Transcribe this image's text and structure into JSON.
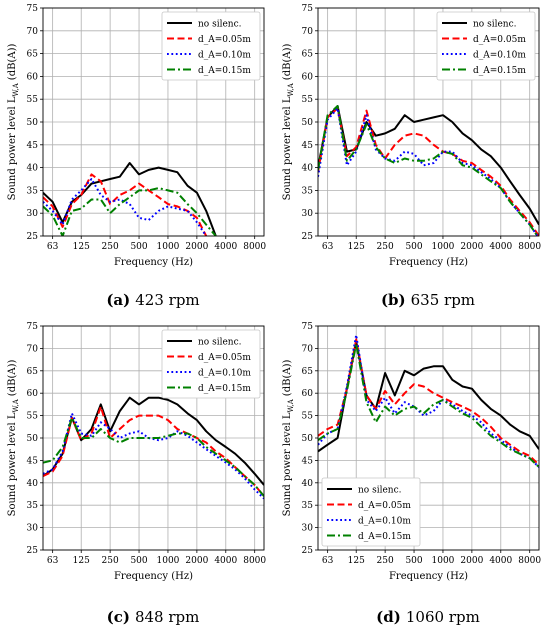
{
  "chart_data": [
    {
      "type": "line",
      "caption_label": "(a)",
      "caption_text": "423 rpm",
      "xlabel": "Frequency (Hz)",
      "ylabel": "Sound power level L",
      "ylabel_sub": "W,A",
      "ylabel_unit": "(dB(A))",
      "xscale": "log",
      "xlim": [
        50,
        10000
      ],
      "ylim": [
        25,
        75
      ],
      "xticks": [
        63,
        125,
        250,
        500,
        1000,
        2000,
        4000,
        8000
      ],
      "xtick_labels": [
        "63",
        "125",
        "250",
        "500",
        "1000",
        "2000",
        "4000",
        "8000"
      ],
      "yticks": [
        25,
        30,
        35,
        40,
        45,
        50,
        55,
        60,
        65,
        70,
        75
      ],
      "ytick_labels": [
        "25",
        "30",
        "35",
        "40",
        "45",
        "50",
        "55",
        "60",
        "65",
        "70",
        "75"
      ],
      "grid": true,
      "legend_position": "top-right",
      "series": [
        {
          "name": "no silenc.",
          "color": "#000000",
          "style": "solid",
          "x": [
            50,
            63,
            80,
            100,
            125,
            160,
            200,
            250,
            315,
            400,
            500,
            630,
            800,
            1000,
            1250,
            1600,
            2000,
            2500,
            3150
          ],
          "y": [
            34.5,
            32.5,
            28.0,
            32.5,
            34.0,
            36.5,
            37.0,
            37.5,
            38.0,
            41.0,
            38.5,
            39.5,
            40.0,
            39.5,
            39.0,
            36.0,
            34.5,
            30.5,
            25.0
          ]
        },
        {
          "name": "d_A=0.05m",
          "color": "#ff0000",
          "style": "dashed",
          "x": [
            50,
            63,
            80,
            100,
            125,
            160,
            200,
            250,
            315,
            400,
            500,
            630,
            800,
            1000,
            1250,
            1600,
            2000,
            2500
          ],
          "y": [
            33.5,
            31.5,
            27.0,
            32.0,
            34.0,
            38.5,
            37.0,
            32.0,
            34.0,
            35.0,
            36.5,
            35.0,
            33.5,
            32.0,
            31.5,
            30.5,
            29.0,
            25.0
          ]
        },
        {
          "name": "d_A=0.10m",
          "color": "#0000ff",
          "style": "dotted",
          "x": [
            50,
            63,
            80,
            100,
            125,
            160,
            200,
            250,
            315,
            400,
            500,
            630,
            800,
            1000,
            1250,
            1600,
            2000,
            2500
          ],
          "y": [
            32.5,
            30.5,
            27.5,
            33.0,
            35.0,
            37.5,
            34.0,
            32.5,
            33.0,
            32.0,
            29.0,
            28.5,
            30.5,
            31.5,
            31.0,
            30.5,
            28.0,
            25.0
          ]
        },
        {
          "name": "d_A=0.15m",
          "color": "#008000",
          "style": "dashdot",
          "x": [
            50,
            63,
            80,
            100,
            125,
            160,
            200,
            250,
            315,
            400,
            500,
            630,
            800,
            1000,
            1250,
            1600,
            2000,
            2500,
            3150
          ],
          "y": [
            31.5,
            29.5,
            25.0,
            30.5,
            31.0,
            33.0,
            33.0,
            30.0,
            32.0,
            33.5,
            35.0,
            35.0,
            35.5,
            35.0,
            34.5,
            32.0,
            30.0,
            27.5,
            25.0
          ]
        }
      ]
    },
    {
      "type": "line",
      "caption_label": "(b)",
      "caption_text": "635 rpm",
      "xlabel": "Frequency (Hz)",
      "ylabel": "Sound power level L",
      "ylabel_sub": "W,A",
      "ylabel_unit": "(dB(A))",
      "xscale": "log",
      "xlim": [
        50,
        10000
      ],
      "ylim": [
        25,
        75
      ],
      "xticks": [
        63,
        125,
        250,
        500,
        1000,
        2000,
        4000,
        8000
      ],
      "xtick_labels": [
        "63",
        "125",
        "250",
        "500",
        "1000",
        "2000",
        "4000",
        "8000"
      ],
      "yticks": [
        25,
        30,
        35,
        40,
        45,
        50,
        55,
        60,
        65,
        70,
        75
      ],
      "ytick_labels": [
        "25",
        "30",
        "35",
        "40",
        "45",
        "50",
        "55",
        "60",
        "65",
        "70",
        "75"
      ],
      "grid": true,
      "legend_position": "top-right",
      "series": [
        {
          "name": "no silenc.",
          "color": "#000000",
          "style": "solid",
          "x": [
            50,
            63,
            80,
            100,
            125,
            160,
            200,
            250,
            315,
            400,
            500,
            630,
            800,
            1000,
            1250,
            1600,
            2000,
            2500,
            3150,
            4000,
            5000,
            6300,
            8000,
            10000
          ],
          "y": [
            40.0,
            51.0,
            53.5,
            43.5,
            44.0,
            50.0,
            47.0,
            47.5,
            48.5,
            51.5,
            50.0,
            50.5,
            51.0,
            51.5,
            50.0,
            47.5,
            46.0,
            44.0,
            42.5,
            40.0,
            37.0,
            34.0,
            31.0,
            27.5
          ]
        },
        {
          "name": "d_A=0.05m",
          "color": "#ff0000",
          "style": "dashed",
          "x": [
            50,
            63,
            80,
            100,
            125,
            160,
            200,
            250,
            315,
            400,
            500,
            630,
            800,
            1000,
            1250,
            1600,
            2000,
            2500,
            3150,
            4000,
            5000,
            6300,
            8000,
            10000
          ],
          "y": [
            39.0,
            51.0,
            53.0,
            42.5,
            44.5,
            52.5,
            45.0,
            42.0,
            45.0,
            47.0,
            47.5,
            47.0,
            45.0,
            43.5,
            43.0,
            41.5,
            41.0,
            39.5,
            38.0,
            36.0,
            33.0,
            30.5,
            28.0,
            25.0
          ]
        },
        {
          "name": "d_A=0.10m",
          "color": "#0000ff",
          "style": "dotted",
          "x": [
            50,
            63,
            80,
            100,
            125,
            160,
            200,
            250,
            315,
            400,
            500,
            630,
            800,
            1000,
            1250,
            1600,
            2000,
            2500,
            3150,
            4000,
            5000,
            6300,
            8000,
            10000
          ],
          "y": [
            38.0,
            50.5,
            53.0,
            40.5,
            43.5,
            51.5,
            44.0,
            42.0,
            41.5,
            43.5,
            43.0,
            40.5,
            41.0,
            43.5,
            43.5,
            41.0,
            40.5,
            39.0,
            37.5,
            35.5,
            32.5,
            30.0,
            27.5,
            24.5
          ]
        },
        {
          "name": "d_A=0.15m",
          "color": "#008000",
          "style": "dashdot",
          "x": [
            50,
            63,
            80,
            100,
            125,
            160,
            200,
            250,
            315,
            400,
            500,
            630,
            800,
            1000,
            1250,
            1600,
            2000,
            2500,
            3150,
            4000,
            5000,
            6300,
            8000,
            10000
          ],
          "y": [
            39.5,
            51.5,
            53.5,
            41.5,
            44.0,
            49.5,
            44.5,
            42.0,
            41.0,
            42.0,
            41.5,
            41.5,
            42.0,
            43.5,
            43.0,
            40.5,
            40.0,
            38.5,
            37.0,
            35.5,
            32.5,
            30.0,
            27.5,
            24.5
          ]
        }
      ]
    },
    {
      "type": "line",
      "caption_label": "(c)",
      "caption_text": "848 rpm",
      "xlabel": "Frequency (Hz)",
      "ylabel": "Sound power level L",
      "ylabel_sub": "W,A",
      "ylabel_unit": "(dB(A))",
      "xscale": "log",
      "xlim": [
        50,
        10000
      ],
      "ylim": [
        25,
        75
      ],
      "xticks": [
        63,
        125,
        250,
        500,
        1000,
        2000,
        4000,
        8000
      ],
      "xtick_labels": [
        "63",
        "125",
        "250",
        "500",
        "1000",
        "2000",
        "4000",
        "8000"
      ],
      "yticks": [
        25,
        30,
        35,
        40,
        45,
        50,
        55,
        60,
        65,
        70,
        75
      ],
      "ytick_labels": [
        "25",
        "30",
        "35",
        "40",
        "45",
        "50",
        "55",
        "60",
        "65",
        "70",
        "75"
      ],
      "grid": true,
      "legend_position": "top-right",
      "series": [
        {
          "name": "no silenc.",
          "color": "#000000",
          "style": "solid",
          "x": [
            50,
            63,
            80,
            100,
            125,
            160,
            200,
            250,
            315,
            400,
            500,
            630,
            800,
            1000,
            1250,
            1600,
            2000,
            2500,
            3150,
            4000,
            5000,
            6300,
            8000,
            10000
          ],
          "y": [
            41.5,
            43.0,
            46.5,
            54.5,
            49.5,
            52.0,
            57.5,
            51.5,
            56.0,
            59.0,
            57.5,
            59.0,
            59.0,
            58.5,
            57.5,
            55.5,
            54.0,
            51.5,
            49.5,
            48.0,
            46.5,
            44.5,
            42.0,
            39.5
          ]
        },
        {
          "name": "d_A=0.05m",
          "color": "#ff0000",
          "style": "dashed",
          "x": [
            50,
            63,
            80,
            100,
            125,
            160,
            200,
            250,
            315,
            400,
            500,
            630,
            800,
            1000,
            1250,
            1600,
            2000,
            2500,
            3150,
            4000,
            5000,
            6300,
            8000,
            10000
          ],
          "y": [
            41.5,
            42.5,
            46.0,
            54.5,
            49.5,
            51.0,
            57.0,
            50.0,
            52.0,
            54.0,
            55.0,
            55.0,
            55.0,
            54.0,
            52.0,
            51.0,
            50.0,
            49.0,
            47.0,
            45.5,
            43.5,
            41.5,
            39.5,
            37.0
          ]
        },
        {
          "name": "d_A=0.10m",
          "color": "#0000ff",
          "style": "dotted",
          "x": [
            50,
            63,
            80,
            100,
            125,
            160,
            200,
            250,
            315,
            400,
            500,
            630,
            800,
            1000,
            1250,
            1600,
            2000,
            2500,
            3150,
            4000,
            5000,
            6300,
            8000,
            10000
          ],
          "y": [
            42.0,
            43.0,
            47.0,
            55.5,
            51.0,
            50.5,
            53.5,
            52.0,
            50.0,
            51.0,
            51.5,
            50.0,
            49.5,
            50.0,
            51.5,
            50.5,
            49.0,
            47.5,
            46.0,
            44.5,
            43.0,
            41.0,
            38.5,
            36.5
          ]
        },
        {
          "name": "d_A=0.15m",
          "color": "#008000",
          "style": "dashdot",
          "x": [
            50,
            63,
            80,
            100,
            125,
            160,
            200,
            250,
            315,
            400,
            500,
            630,
            800,
            1000,
            1250,
            1600,
            2000,
            2500,
            3150,
            4000,
            5000,
            6300,
            8000,
            10000
          ],
          "y": [
            44.5,
            45.0,
            48.0,
            54.5,
            50.0,
            50.0,
            52.0,
            50.0,
            49.0,
            50.0,
            50.0,
            50.0,
            50.0,
            50.5,
            51.0,
            51.0,
            50.0,
            48.0,
            46.5,
            45.0,
            43.5,
            41.5,
            39.5,
            37.0
          ]
        }
      ]
    },
    {
      "type": "line",
      "caption_label": "(d)",
      "caption_text": "1060 rpm",
      "xlabel": "Frequency (Hz)",
      "ylabel": "Sound power level L",
      "ylabel_sub": "W,A",
      "ylabel_unit": "(dB(A))",
      "xscale": "log",
      "xlim": [
        50,
        10000
      ],
      "ylim": [
        25,
        75
      ],
      "xticks": [
        63,
        125,
        250,
        500,
        1000,
        2000,
        4000,
        8000
      ],
      "xtick_labels": [
        "63",
        "125",
        "250",
        "500",
        "1000",
        "2000",
        "4000",
        "8000"
      ],
      "yticks": [
        25,
        30,
        35,
        40,
        45,
        50,
        55,
        60,
        65,
        70,
        75
      ],
      "ytick_labels": [
        "25",
        "30",
        "35",
        "40",
        "45",
        "50",
        "55",
        "60",
        "65",
        "70",
        "75"
      ],
      "grid": true,
      "legend_position": "bottom-left",
      "series": [
        {
          "name": "no silenc.",
          "color": "#000000",
          "style": "solid",
          "x": [
            50,
            63,
            80,
            100,
            125,
            160,
            200,
            250,
            315,
            400,
            500,
            630,
            800,
            1000,
            1250,
            1600,
            2000,
            2500,
            3150,
            4000,
            5000,
            6300,
            8000,
            10000
          ],
          "y": [
            47.0,
            48.5,
            50.0,
            61.0,
            71.5,
            59.5,
            56.5,
            64.5,
            59.5,
            65.0,
            64.0,
            65.5,
            66.0,
            66.0,
            63.0,
            61.5,
            61.0,
            58.5,
            56.5,
            55.0,
            53.0,
            51.5,
            50.5,
            47.5
          ]
        },
        {
          "name": "d_A=0.05m",
          "color": "#ff0000",
          "style": "dashed",
          "x": [
            50,
            63,
            80,
            100,
            125,
            160,
            200,
            250,
            315,
            400,
            500,
            630,
            800,
            1000,
            1250,
            1600,
            2000,
            2500,
            3150,
            4000,
            5000,
            6300,
            8000,
            10000
          ],
          "y": [
            50.5,
            52.0,
            53.0,
            61.0,
            72.0,
            59.5,
            56.5,
            60.5,
            57.5,
            60.0,
            62.0,
            61.5,
            60.0,
            59.0,
            58.0,
            57.0,
            56.0,
            54.5,
            52.5,
            50.0,
            48.5,
            47.0,
            46.0,
            44.0
          ]
        },
        {
          "name": "d_A=0.10m",
          "color": "#0000ff",
          "style": "dotted",
          "x": [
            50,
            63,
            80,
            100,
            125,
            160,
            200,
            250,
            315,
            400,
            500,
            630,
            800,
            1000,
            1250,
            1600,
            2000,
            2500,
            3150,
            4000,
            5000,
            6300,
            8000,
            10000
          ],
          "y": [
            48.5,
            51.0,
            52.0,
            61.5,
            73.0,
            58.5,
            56.0,
            59.0,
            55.5,
            58.0,
            57.0,
            55.0,
            56.0,
            58.5,
            57.5,
            56.0,
            55.0,
            53.5,
            51.0,
            49.5,
            48.0,
            46.5,
            45.5,
            43.5
          ]
        },
        {
          "name": "d_A=0.15m",
          "color": "#008000",
          "style": "dashdot",
          "x": [
            50,
            63,
            80,
            100,
            125,
            160,
            200,
            250,
            315,
            400,
            500,
            630,
            800,
            1000,
            1250,
            1600,
            2000,
            2500,
            3150,
            4000,
            5000,
            6300,
            8000,
            10000
          ],
          "y": [
            49.5,
            51.0,
            52.0,
            60.5,
            71.0,
            58.0,
            53.5,
            57.0,
            55.0,
            56.5,
            57.0,
            55.5,
            57.5,
            58.5,
            57.0,
            55.5,
            54.5,
            52.5,
            50.5,
            49.0,
            47.5,
            46.5,
            45.5,
            43.5
          ]
        }
      ]
    }
  ]
}
